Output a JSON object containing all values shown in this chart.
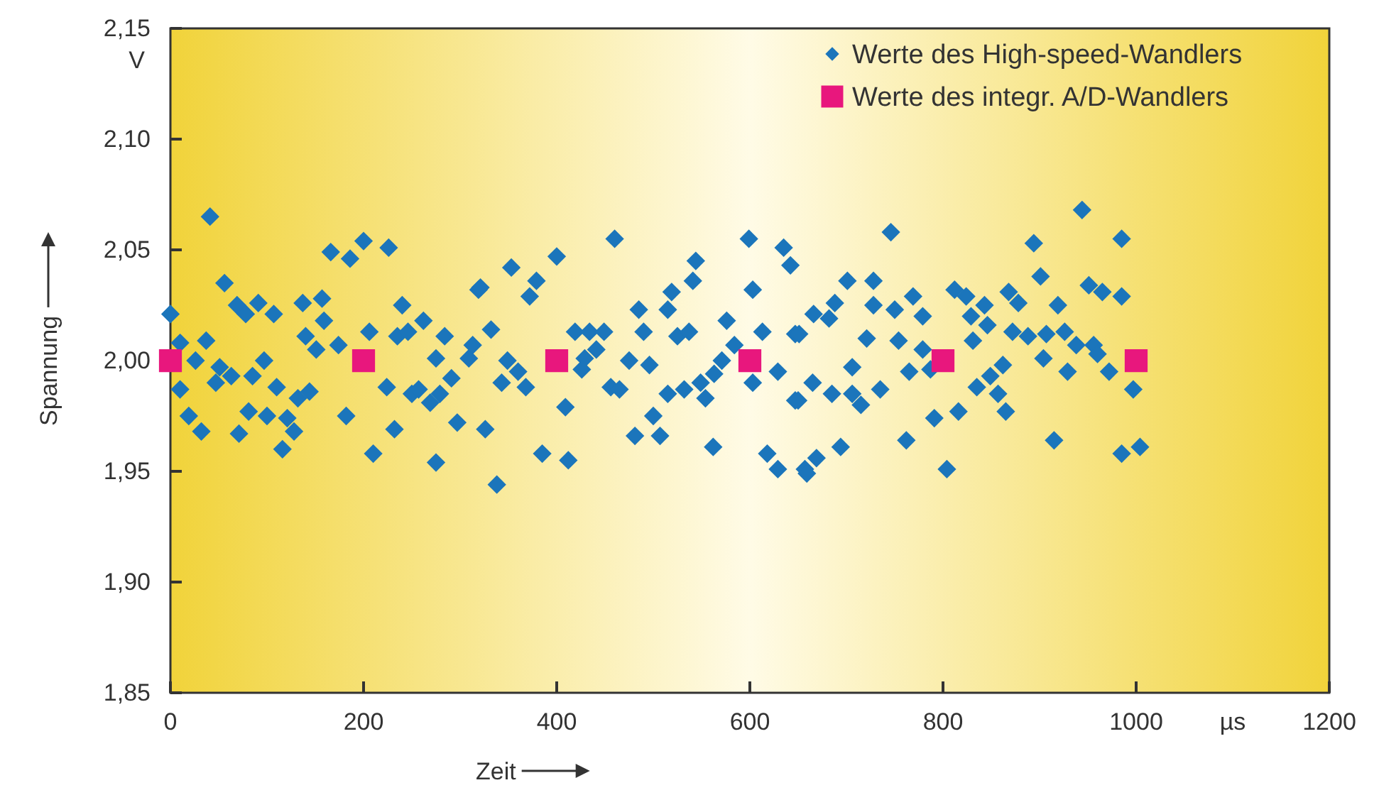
{
  "chart_data": {
    "type": "scatter",
    "xlabel": "Zeit",
    "ylabel": "Spannung",
    "annotations": [
      "V",
      "µs"
    ],
    "xlim": [
      0,
      1200
    ],
    "xticks": [
      0,
      200,
      400,
      600,
      800,
      1000,
      1200
    ],
    "ylim": [
      1.85,
      2.15
    ],
    "yticks": [
      {
        "value": 1.85,
        "label": "1,85"
      },
      {
        "value": 1.9,
        "label": "1,90"
      },
      {
        "value": 1.95,
        "label": "1,95"
      },
      {
        "value": 2.0,
        "label": "2,00"
      },
      {
        "value": 2.05,
        "label": "2,05"
      },
      {
        "value": 2.1,
        "label": "2,10"
      },
      {
        "value": 2.15,
        "label": "2,15"
      }
    ],
    "legend": "top right",
    "grid": false,
    "series": [
      {
        "name": "Werte des High-speed-Wandlers",
        "color": "#1b75bb",
        "marker": "diamond",
        "x": [
          41,
          166,
          186,
          200,
          226,
          56,
          69,
          91,
          78,
          107,
          137,
          157,
          159,
          0,
          240,
          262,
          319,
          37,
          10,
          140,
          151,
          174,
          206,
          235,
          246,
          284,
          275,
          309,
          313,
          26,
          97,
          51,
          10,
          47,
          63,
          85,
          110,
          132,
          144,
          224,
          250,
          257,
          269,
          279,
          291,
          100,
          19,
          81,
          121,
          32,
          71,
          128,
          182,
          232,
          297,
          116,
          210,
          275,
          460,
          599,
          635,
          642,
          400,
          353,
          379,
          321,
          372,
          544,
          541,
          603,
          519,
          515,
          485,
          576,
          332,
          419,
          434,
          449,
          490,
          525,
          537,
          613,
          647,
          441,
          429,
          584,
          349,
          475,
          496,
          426,
          360,
          571,
          563,
          629,
          343,
          368,
          603,
          456,
          465,
          515,
          532,
          549,
          554,
          409,
          647,
          500,
          326,
          481,
          507,
          562,
          385,
          412,
          618,
          629,
          657,
          338,
          944,
          746,
          985,
          894,
          901,
          701,
          728,
          951,
          965,
          985,
          812,
          824,
          868,
          878,
          769,
          688,
          728,
          750,
          666,
          682,
          779,
          829,
          843,
          846,
          919,
          651,
          721,
          754,
          831,
          872,
          888,
          907,
          926,
          938,
          956,
          779,
          904,
          960,
          706,
          765,
          787,
          862,
          929,
          972,
          665,
          849,
          685,
          706,
          735,
          715,
          835,
          857,
          997,
          650,
          791,
          816,
          865,
          694,
          762,
          915,
          985,
          1004,
          669,
          659,
          804
        ],
        "values": [
          2.065,
          2.049,
          2.046,
          2.054,
          2.051,
          2.035,
          2.025,
          2.026,
          2.021,
          2.021,
          2.026,
          2.028,
          2.018,
          2.021,
          2.025,
          2.018,
          2.032,
          2.009,
          2.008,
          2.011,
          2.005,
          2.007,
          2.013,
          2.011,
          2.013,
          2.011,
          2.001,
          2.001,
          2.007,
          2.0,
          2.0,
          1.997,
          1.987,
          1.99,
          1.993,
          1.993,
          1.988,
          1.983,
          1.986,
          1.988,
          1.985,
          1.987,
          1.981,
          1.985,
          1.992,
          1.975,
          1.975,
          1.977,
          1.974,
          1.968,
          1.967,
          1.968,
          1.975,
          1.969,
          1.972,
          1.96,
          1.958,
          1.954,
          2.055,
          2.055,
          2.051,
          2.043,
          2.047,
          2.042,
          2.036,
          2.033,
          2.029,
          2.045,
          2.036,
          2.032,
          2.031,
          2.023,
          2.023,
          2.018,
          2.014,
          2.013,
          2.013,
          2.013,
          2.013,
          2.011,
          2.013,
          2.013,
          2.012,
          2.005,
          2.001,
          2.007,
          2.0,
          2.0,
          1.998,
          1.996,
          1.995,
          2.0,
          1.994,
          1.995,
          1.99,
          1.988,
          1.99,
          1.988,
          1.987,
          1.985,
          1.987,
          1.99,
          1.983,
          1.979,
          1.982,
          1.975,
          1.969,
          1.966,
          1.966,
          1.961,
          1.958,
          1.955,
          1.958,
          1.951,
          1.951,
          1.944,
          2.068,
          2.058,
          2.055,
          2.053,
          2.038,
          2.036,
          2.036,
          2.034,
          2.031,
          2.029,
          2.032,
          2.029,
          2.031,
          2.026,
          2.029,
          2.026,
          2.025,
          2.023,
          2.021,
          2.019,
          2.02,
          2.02,
          2.025,
          2.016,
          2.025,
          2.012,
          2.01,
          2.009,
          2.009,
          2.013,
          2.011,
          2.012,
          2.013,
          2.007,
          2.007,
          2.005,
          2.001,
          2.003,
          1.997,
          1.995,
          1.996,
          1.998,
          1.995,
          1.995,
          1.99,
          1.993,
          1.985,
          1.985,
          1.987,
          1.98,
          1.988,
          1.985,
          1.987,
          1.982,
          1.974,
          1.977,
          1.977,
          1.961,
          1.964,
          1.964,
          1.958,
          1.961,
          1.956,
          1.949,
          1.951
        ]
      },
      {
        "name": "Werte des integr. A/D-Wandlers",
        "color": "#e8177d",
        "marker": "square",
        "x": [
          0,
          200,
          400,
          600,
          800,
          1000
        ],
        "values": [
          2.0,
          2.0,
          2.0,
          2.0,
          2.0,
          2.0
        ]
      }
    ]
  }
}
